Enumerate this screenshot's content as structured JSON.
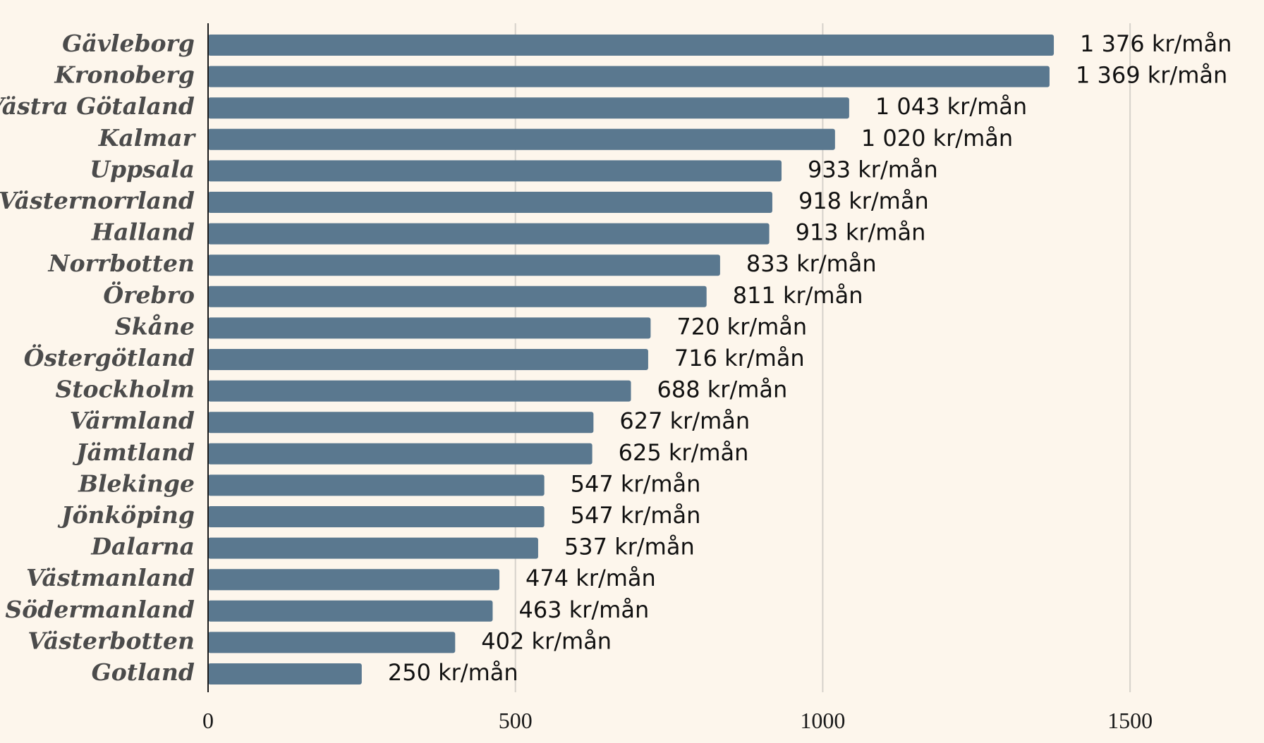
{
  "chart_data": {
    "type": "bar",
    "orientation": "horizontal",
    "title": "",
    "xlabel": "",
    "ylabel": "",
    "categories": [
      "Gävleborg",
      "Kronoberg",
      "Västra Götaland",
      "Kalmar",
      "Uppsala",
      "Västernorrland",
      "Halland",
      "Norrbotten",
      "Örebro",
      "Skåne",
      "Östergötland",
      "Stockholm",
      "Värmland",
      "Jämtland",
      "Blekinge",
      "Jönköping",
      "Dalarna",
      "Västmanland",
      "Södermanland",
      "Västerbotten",
      "Gotland"
    ],
    "values": [
      1376,
      1369,
      1043,
      1020,
      933,
      918,
      913,
      833,
      811,
      720,
      716,
      688,
      627,
      625,
      547,
      547,
      537,
      474,
      463,
      402,
      250
    ],
    "value_labels": [
      "1 376 kr/mån",
      "1 369 kr/mån",
      "1 043 kr/mån",
      "1 020 kr/mån",
      "933 kr/mån",
      "918 kr/mån",
      "913 kr/mån",
      "833 kr/mån",
      "811 kr/mån",
      "720 kr/mån",
      "716 kr/mån",
      "688 kr/mån",
      "627 kr/mån",
      "625 kr/mån",
      "547 kr/mån",
      "547 kr/mån",
      "537 kr/mån",
      "474 kr/mån",
      "463 kr/mån",
      "402 kr/mån",
      "250 kr/mån"
    ],
    "xticks": [
      0,
      500,
      1000,
      1500
    ],
    "xtick_labels": [
      "0",
      "500",
      "1000",
      "1500"
    ],
    "xlim": [
      0,
      1700
    ],
    "grid": true,
    "colors": {
      "background": "#fdf6ec",
      "bar": "#5a788f",
      "grid": "#d6d2cb",
      "axis": "#1a1a1a"
    }
  }
}
